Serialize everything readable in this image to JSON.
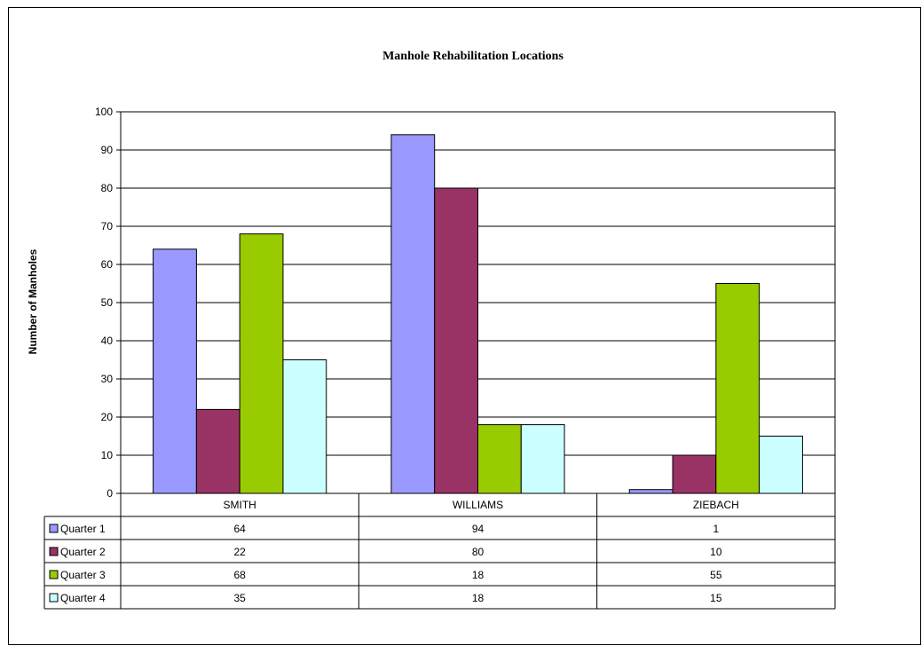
{
  "chart_data": {
    "type": "bar",
    "title": "Manhole Rehabilitation Locations",
    "xlabel": "",
    "ylabel": "Number of Manholes",
    "ylim": [
      0,
      100
    ],
    "yticks": [
      0,
      10,
      20,
      30,
      40,
      50,
      60,
      70,
      80,
      90,
      100
    ],
    "grid": true,
    "legend_placement": "data-table",
    "categories": [
      "SMITH",
      "WILLIAMS",
      "ZIEBACH"
    ],
    "series": [
      {
        "name": "Quarter 1",
        "color": "#9999FF",
        "values": [
          64,
          94,
          1
        ]
      },
      {
        "name": "Quarter 2",
        "color": "#993366",
        "values": [
          22,
          80,
          10
        ]
      },
      {
        "name": "Quarter 3",
        "color": "#99CC00",
        "values": [
          68,
          18,
          55
        ]
      },
      {
        "name": "Quarter 4",
        "color": "#CCFFFF",
        "values": [
          35,
          18,
          15
        ]
      }
    ]
  }
}
